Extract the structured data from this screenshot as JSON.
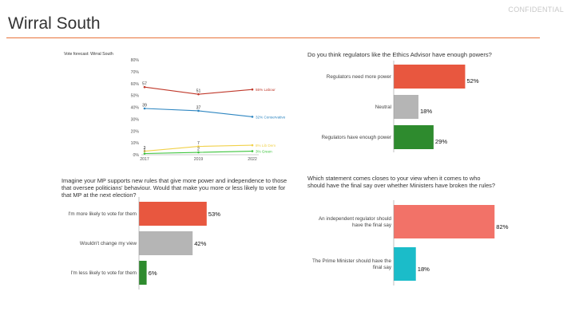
{
  "header": {
    "title": "Wirral South",
    "confidential": "CONFIDENTIAL"
  },
  "chart_data": [
    {
      "id": "vote-forecast",
      "type": "line",
      "title": "Vote forecast: Wirral South",
      "x": [
        "2017",
        "2019",
        "2022"
      ],
      "ylim": [
        0,
        80
      ],
      "yticks": [
        "0%",
        "10%",
        "20%",
        "30%",
        "40%",
        "50%",
        "60%",
        "70%",
        "80%"
      ],
      "series": [
        {
          "name": "Labour",
          "color": "#c0392b",
          "values": [
            57,
            51,
            55
          ],
          "labels": [
            "57",
            "51",
            ""
          ],
          "end_label": "55% Labour"
        },
        {
          "name": "Conservative",
          "color": "#2e86c1",
          "values": [
            39,
            37,
            32
          ],
          "labels": [
            "39",
            "37",
            ""
          ],
          "end_label": "32% Conservative"
        },
        {
          "name": "Lib Dem",
          "color": "#f1d14a",
          "values": [
            3,
            7,
            8
          ],
          "labels": [
            "3",
            "7",
            ""
          ],
          "end_label": "8% Lib Dem"
        },
        {
          "name": "Green",
          "color": "#3cc43c",
          "values": [
            1,
            2,
            3
          ],
          "labels": [
            "1",
            "2",
            ""
          ],
          "end_label": "3% Green"
        }
      ]
    },
    {
      "id": "regulator-powers",
      "type": "bar",
      "title": "Do you think regulators like the Ethics Advisor have enough powers?",
      "categories": [
        "Regulators need more power",
        "Neutral",
        "Regulators have enough power"
      ],
      "values": [
        52,
        18,
        29
      ],
      "labels": [
        "52%",
        "18%",
        "29%"
      ],
      "colors": [
        "#e8573f",
        "#b5b5b5",
        "#2e8b2e"
      ],
      "xmax": 100
    },
    {
      "id": "mp-rules",
      "type": "bar",
      "title": "Imagine your MP supports new rules that give more power and independence to those that oversee politicians' behaviour. Would that make you more or less likely to vote for that MP at the next election?",
      "categories": [
        "I'm more likely to vote for them",
        "Wouldn't change my view",
        "I'm less likely to vote for them"
      ],
      "values": [
        53,
        42,
        6
      ],
      "labels": [
        "53%",
        "42%",
        "6%"
      ],
      "colors": [
        "#e8573f",
        "#b5b5b5",
        "#2e8b2e"
      ],
      "xmax": 100
    },
    {
      "id": "final-say",
      "type": "bar",
      "title": "Which statement comes closes to your view when it comes to who should have the final say over whether Ministers have broken the rules?",
      "categories": [
        "An independent regulator should have the final say",
        "The Prime Minister should have the final say"
      ],
      "category_lines": [
        [
          "An independent regulator should",
          "have the final say"
        ],
        [
          "The Prime Minister should have the",
          "final say"
        ]
      ],
      "values": [
        82,
        18
      ],
      "labels": [
        "82%",
        "18%"
      ],
      "colors": [
        "#f27268",
        "#1bbcc9"
      ],
      "xmax": 100
    }
  ]
}
